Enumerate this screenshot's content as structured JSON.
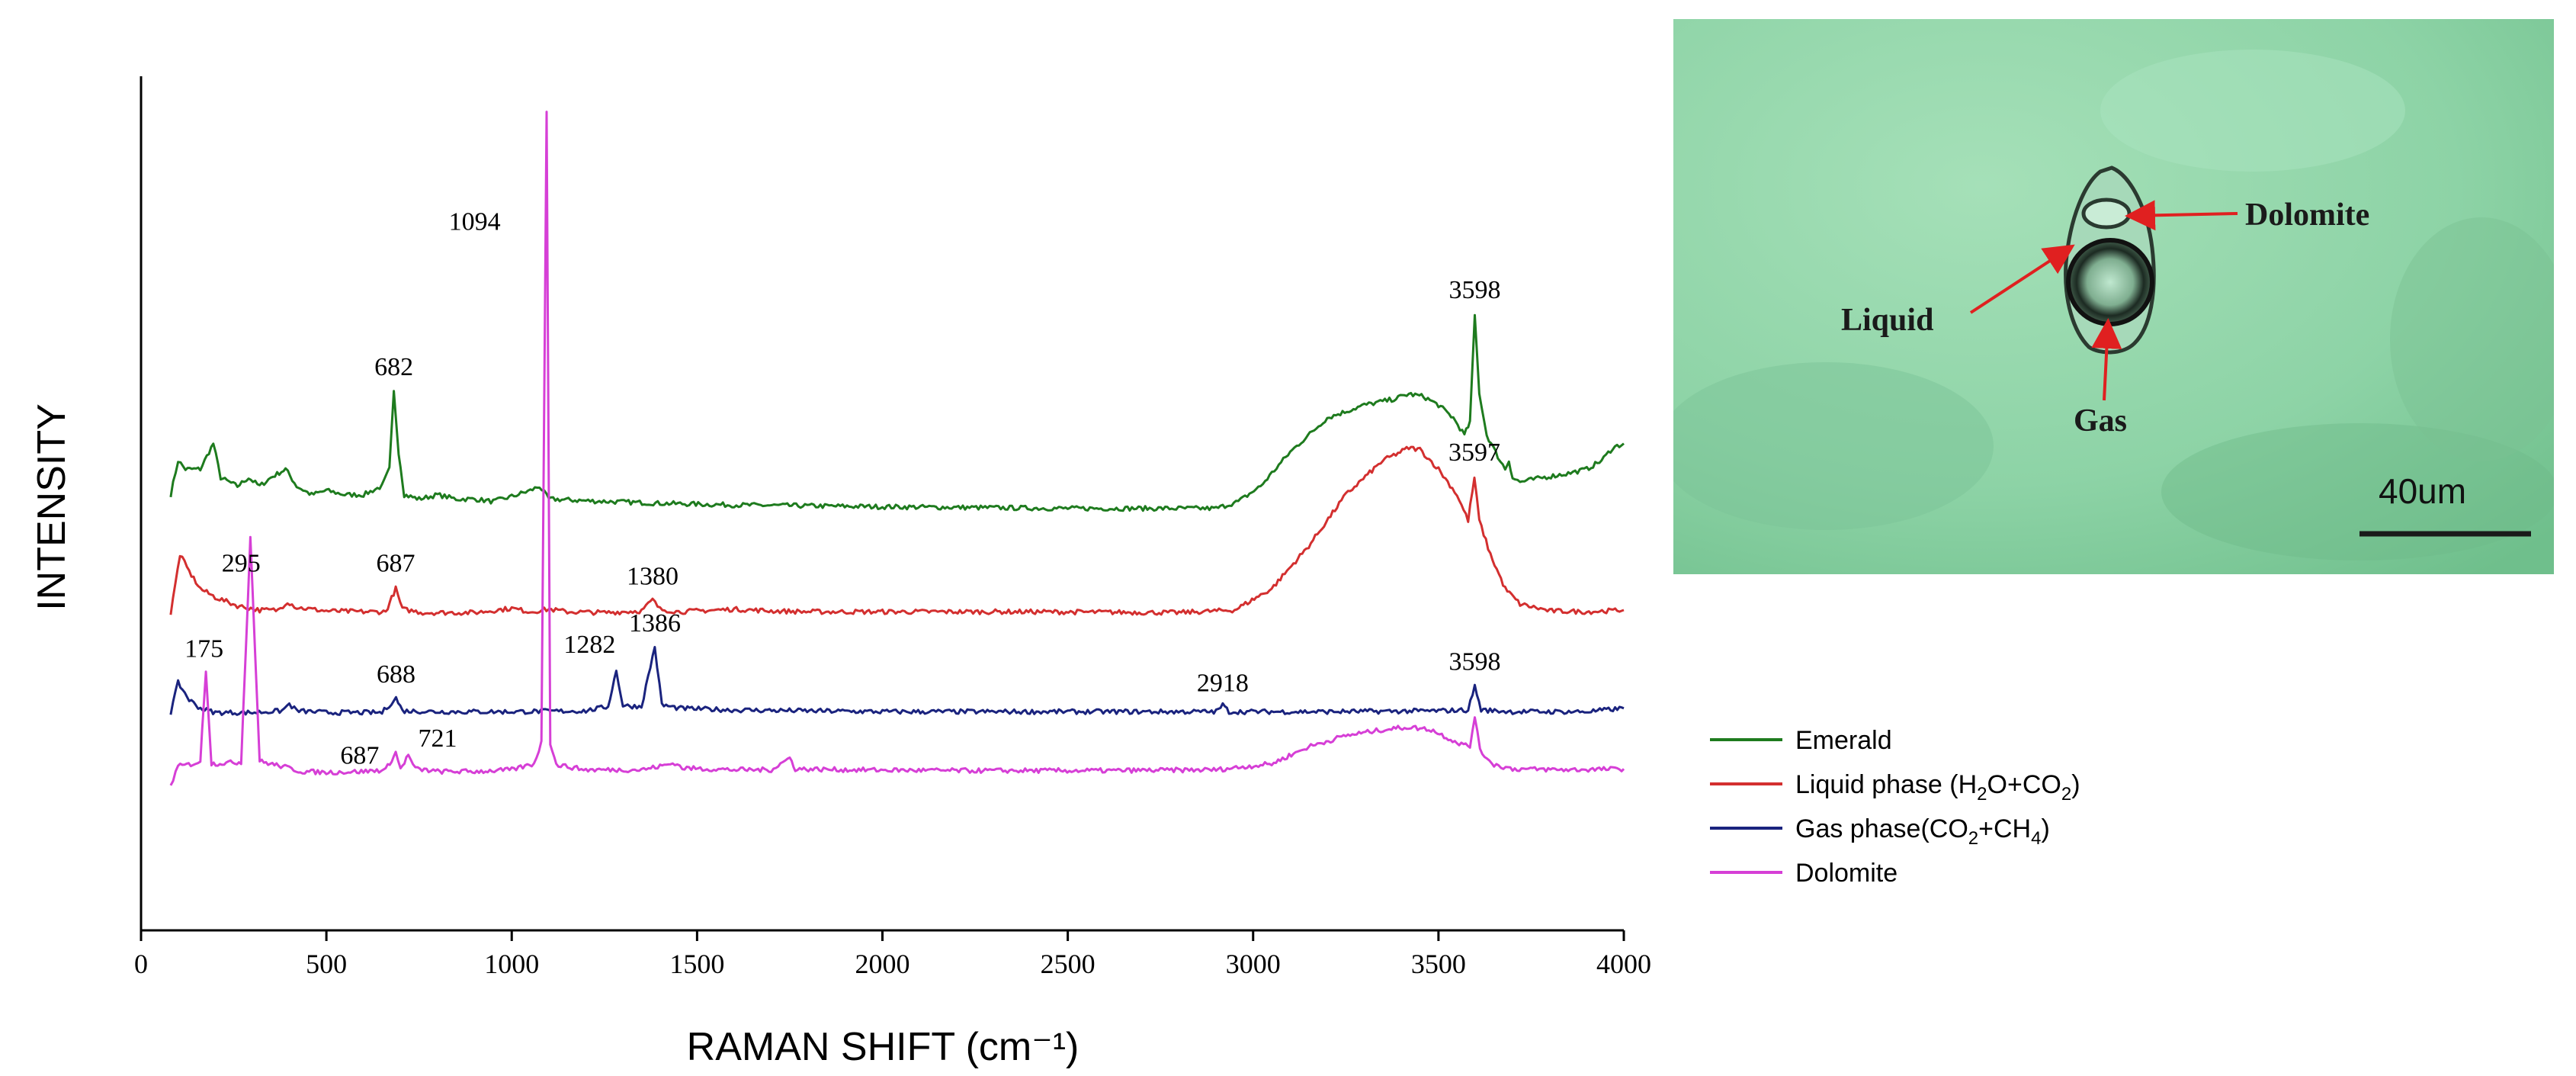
{
  "chart_data": {
    "type": "line",
    "xlabel": "RAMAN SHIFT (cm⁻¹)",
    "ylabel": "INTENSITY",
    "xlim": [
      0,
      4000
    ],
    "ylim": [
      0,
      100
    ],
    "xticks": [
      0,
      500,
      1000,
      1500,
      2000,
      2500,
      3000,
      3500,
      4000
    ],
    "grid": false,
    "legend_position": "right-middle",
    "series": [
      {
        "name": "Emerald",
        "color": "#1e7b1e",
        "points": [
          [
            80,
            51
          ],
          [
            100,
            55
          ],
          [
            120,
            54
          ],
          [
            160,
            54
          ],
          [
            195,
            57
          ],
          [
            215,
            53
          ],
          [
            260,
            52
          ],
          [
            290,
            53
          ],
          [
            320,
            52
          ],
          [
            350,
            53
          ],
          [
            390,
            54
          ],
          [
            420,
            52
          ],
          [
            460,
            51
          ],
          [
            500,
            51.5
          ],
          [
            550,
            51
          ],
          [
            600,
            51
          ],
          [
            650,
            52
          ],
          [
            670,
            54
          ],
          [
            682,
            63
          ],
          [
            695,
            56
          ],
          [
            710,
            51
          ],
          [
            750,
            50.5
          ],
          [
            800,
            51
          ],
          [
            850,
            50.5
          ],
          [
            900,
            50.5
          ],
          [
            950,
            50.2
          ],
          [
            1000,
            50.8
          ],
          [
            1050,
            51.5
          ],
          [
            1075,
            52
          ],
          [
            1100,
            50.5
          ],
          [
            1200,
            50.3
          ],
          [
            1400,
            50
          ],
          [
            1600,
            49.8
          ],
          [
            2000,
            49.6
          ],
          [
            2500,
            49.4
          ],
          [
            2900,
            49.4
          ],
          [
            2960,
            50.2
          ],
          [
            3020,
            52
          ],
          [
            3100,
            56
          ],
          [
            3200,
            60
          ],
          [
            3300,
            61.5
          ],
          [
            3380,
            62.2
          ],
          [
            3420,
            62.8
          ],
          [
            3460,
            62.5
          ],
          [
            3500,
            61.5
          ],
          [
            3540,
            60
          ],
          [
            3570,
            58
          ],
          [
            3585,
            59.5
          ],
          [
            3598,
            72
          ],
          [
            3610,
            63
          ],
          [
            3630,
            58
          ],
          [
            3660,
            55.5
          ],
          [
            3680,
            54
          ],
          [
            3690,
            55
          ],
          [
            3700,
            53
          ],
          [
            3720,
            52.5
          ],
          [
            3780,
            53
          ],
          [
            3850,
            53.5
          ],
          [
            3900,
            54
          ],
          [
            3940,
            55
          ],
          [
            3970,
            56.5
          ],
          [
            4000,
            57
          ]
        ],
        "peak_labels": [
          682,
          3598
        ]
      },
      {
        "name": "Liquid phase (H2O+CO2)",
        "color": "#d32f2f",
        "points": [
          [
            80,
            37
          ],
          [
            105,
            44
          ],
          [
            130,
            42
          ],
          [
            160,
            40
          ],
          [
            200,
            39
          ],
          [
            260,
            38
          ],
          [
            320,
            37.5
          ],
          [
            370,
            37.5
          ],
          [
            395,
            38.5
          ],
          [
            420,
            37.8
          ],
          [
            500,
            37.4
          ],
          [
            600,
            37.3
          ],
          [
            660,
            37.3
          ],
          [
            687,
            40
          ],
          [
            705,
            37.6
          ],
          [
            760,
            37.2
          ],
          [
            900,
            37.2
          ],
          [
            1000,
            37.7
          ],
          [
            1050,
            37.3
          ],
          [
            1100,
            37.6
          ],
          [
            1150,
            37.3
          ],
          [
            1250,
            37.2
          ],
          [
            1350,
            37.4
          ],
          [
            1380,
            38.7
          ],
          [
            1400,
            37.6
          ],
          [
            1450,
            37.3
          ],
          [
            1600,
            37.6
          ],
          [
            1700,
            37.4
          ],
          [
            1800,
            37.3
          ],
          [
            2000,
            37.3
          ],
          [
            2400,
            37.3
          ],
          [
            2800,
            37.2
          ],
          [
            2950,
            37.5
          ],
          [
            3050,
            40
          ],
          [
            3150,
            45
          ],
          [
            3250,
            51
          ],
          [
            3350,
            55
          ],
          [
            3420,
            56.5
          ],
          [
            3450,
            56.3
          ],
          [
            3500,
            54
          ],
          [
            3550,
            51
          ],
          [
            3580,
            48
          ],
          [
            3597,
            53
          ],
          [
            3610,
            48
          ],
          [
            3640,
            44
          ],
          [
            3680,
            40
          ],
          [
            3720,
            38.2
          ],
          [
            3800,
            37.4
          ],
          [
            3900,
            37.3
          ],
          [
            4000,
            37.5
          ]
        ],
        "peak_labels": [
          687,
          1380,
          3597
        ]
      },
      {
        "name": "Gas phase(CO2+CH4)",
        "color": "#1a237e",
        "points": [
          [
            80,
            25.5
          ],
          [
            100,
            29
          ],
          [
            130,
            27
          ],
          [
            160,
            26
          ],
          [
            200,
            25.5
          ],
          [
            300,
            25.5
          ],
          [
            380,
            25.7
          ],
          [
            400,
            26.5
          ],
          [
            420,
            25.7
          ],
          [
            500,
            25.5
          ],
          [
            650,
            25.5
          ],
          [
            688,
            27.2
          ],
          [
            705,
            25.7
          ],
          [
            800,
            25.6
          ],
          [
            1000,
            25.6
          ],
          [
            1200,
            25.7
          ],
          [
            1260,
            26.2
          ],
          [
            1282,
            30.4
          ],
          [
            1300,
            26.3
          ],
          [
            1350,
            26.2
          ],
          [
            1386,
            33.2
          ],
          [
            1405,
            26.4
          ],
          [
            1450,
            26
          ],
          [
            1600,
            25.8
          ],
          [
            2000,
            25.6
          ],
          [
            2500,
            25.6
          ],
          [
            2900,
            25.6
          ],
          [
            2918,
            26.4
          ],
          [
            2935,
            25.6
          ],
          [
            3200,
            25.6
          ],
          [
            3500,
            25.7
          ],
          [
            3580,
            25.8
          ],
          [
            3598,
            28.6
          ],
          [
            3615,
            25.8
          ],
          [
            3700,
            25.6
          ],
          [
            3900,
            25.6
          ],
          [
            4000,
            26
          ]
        ],
        "peak_labels": [
          1282,
          1386,
          2918,
          3598
        ]
      },
      {
        "name": "Dolomite",
        "color": "#d63fd6",
        "points": [
          [
            80,
            17
          ],
          [
            100,
            19.2
          ],
          [
            140,
            19.5
          ],
          [
            160,
            19.8
          ],
          [
            175,
            30.5
          ],
          [
            190,
            19.5
          ],
          [
            230,
            19.6
          ],
          [
            270,
            19.7
          ],
          [
            295,
            46
          ],
          [
            320,
            19.8
          ],
          [
            360,
            19.4
          ],
          [
            400,
            19
          ],
          [
            430,
            18.6
          ],
          [
            500,
            18.5
          ],
          [
            600,
            18.6
          ],
          [
            660,
            18.8
          ],
          [
            687,
            20.8
          ],
          [
            700,
            18.9
          ],
          [
            721,
            20.5
          ],
          [
            740,
            18.9
          ],
          [
            800,
            18.6
          ],
          [
            900,
            18.6
          ],
          [
            1000,
            18.8
          ],
          [
            1060,
            19.5
          ],
          [
            1080,
            22
          ],
          [
            1094,
            96
          ],
          [
            1104,
            22
          ],
          [
            1120,
            19.4
          ],
          [
            1200,
            18.8
          ],
          [
            1350,
            18.8
          ],
          [
            1400,
            19.2
          ],
          [
            1440,
            19.6
          ],
          [
            1460,
            19
          ],
          [
            1600,
            18.8
          ],
          [
            1700,
            18.8
          ],
          [
            1750,
            20.2
          ],
          [
            1765,
            18.9
          ],
          [
            1900,
            18.8
          ],
          [
            2200,
            18.7
          ],
          [
            2600,
            18.7
          ],
          [
            2900,
            18.8
          ],
          [
            3050,
            19.5
          ],
          [
            3150,
            21.5
          ],
          [
            3250,
            22.8
          ],
          [
            3350,
            23.5
          ],
          [
            3420,
            23.8
          ],
          [
            3480,
            23.5
          ],
          [
            3550,
            22
          ],
          [
            3585,
            21.5
          ],
          [
            3598,
            25.2
          ],
          [
            3612,
            21
          ],
          [
            3650,
            19.4
          ],
          [
            3700,
            18.9
          ],
          [
            3850,
            18.8
          ],
          [
            4000,
            18.9
          ]
        ],
        "peak_labels": [
          175,
          295,
          687,
          721,
          1094
        ]
      }
    ]
  },
  "peak_labels": [
    {
      "text": "682",
      "x": 682,
      "y": 65
    },
    {
      "text": "3598",
      "x": 3598,
      "y": 74
    },
    {
      "text": "1094",
      "x": 900,
      "y": 82
    },
    {
      "text": "3597",
      "x": 3597,
      "y": 55
    },
    {
      "text": "687",
      "x": 687,
      "y": 42
    },
    {
      "text": "1380",
      "x": 1380,
      "y": 40.5
    },
    {
      "text": "295",
      "x": 270,
      "y": 42
    },
    {
      "text": "175",
      "x": 170,
      "y": 32
    },
    {
      "text": "1386",
      "x": 1386,
      "y": 35
    },
    {
      "text": "688",
      "x": 688,
      "y": 29
    },
    {
      "text": "1282",
      "x": 1210,
      "y": 32.5
    },
    {
      "text": "2918",
      "x": 2918,
      "y": 28
    },
    {
      "text": "3598",
      "x": 3598,
      "y": 30.5
    },
    {
      "text": "687",
      "x": 590,
      "y": 19.5
    },
    {
      "text": "721",
      "x": 800,
      "y": 21.5
    }
  ],
  "legend": {
    "items": [
      {
        "base": "Emerald",
        "parts": [],
        "color": "#1e7b1e"
      },
      {
        "base": "Liquid phase (H",
        "parts": [
          [
            "sub",
            "2"
          ],
          [
            "t",
            "O+CO"
          ],
          [
            "sub",
            "2"
          ],
          [
            "t",
            ")"
          ]
        ],
        "color": "#d32f2f"
      },
      {
        "base": "Gas phase(CO",
        "parts": [
          [
            "sub",
            "2"
          ],
          [
            "t",
            "+CH"
          ],
          [
            "sub",
            "4"
          ],
          [
            "t",
            ")"
          ]
        ],
        "color": "#1a237e"
      },
      {
        "base": "Dolomite",
        "parts": [],
        "color": "#d63fd6"
      }
    ]
  },
  "micrograph": {
    "labels": {
      "dolomite": "Dolomite",
      "liquid": "Liquid",
      "gas": "Gas"
    },
    "scale_bar": "40um",
    "colors": {
      "background": "#8fd6a8",
      "arrow": "#e02020"
    }
  }
}
